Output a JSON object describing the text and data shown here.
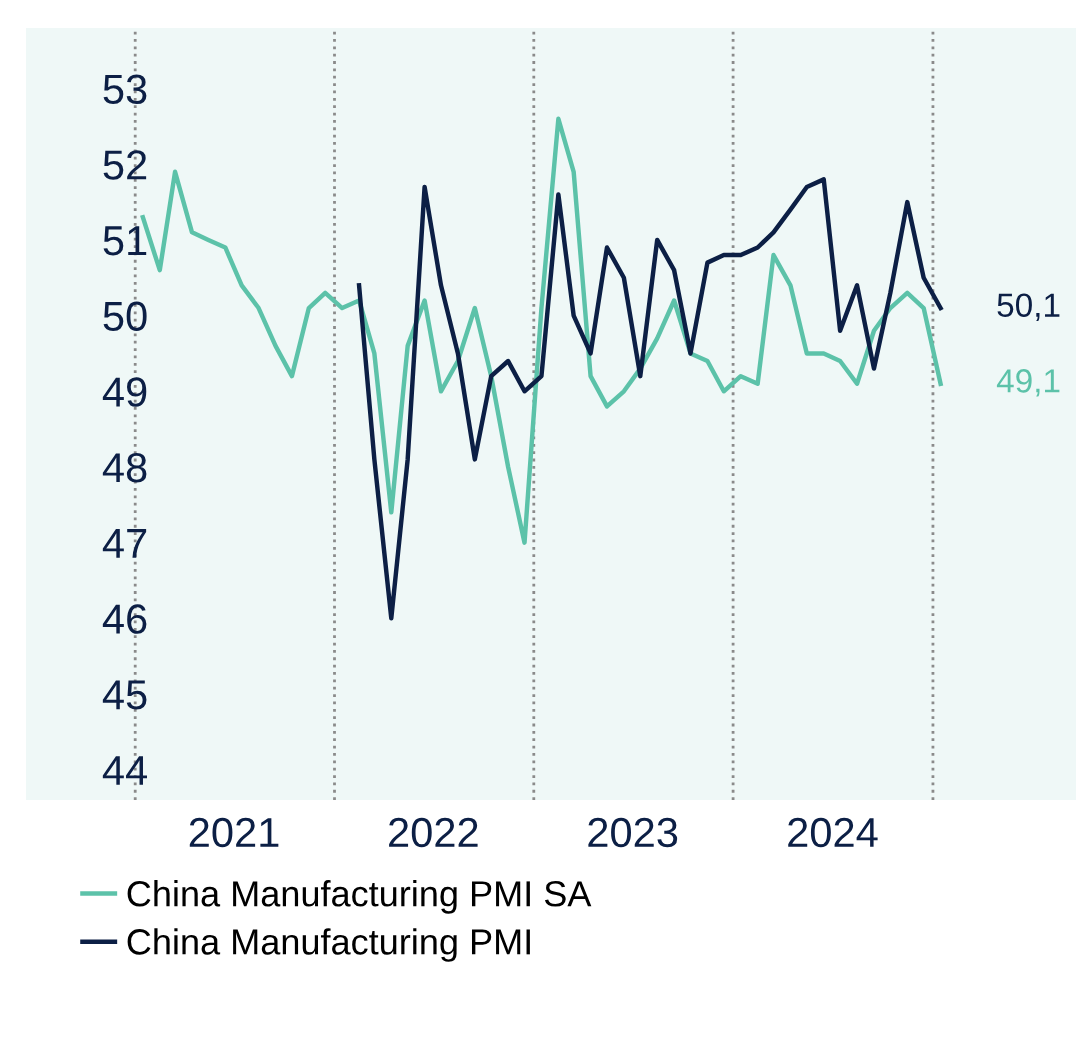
{
  "chart_data": {
    "type": "line",
    "x": [
      "2021-01-15",
      "2021-02-15",
      "2021-03-15",
      "2021-04-15",
      "2021-05-15",
      "2021-06-15",
      "2021-07-15",
      "2021-08-15",
      "2021-09-15",
      "2021-10-15",
      "2021-11-15",
      "2021-12-15",
      "2022-01-15",
      "2022-02-15",
      "2022-03-15",
      "2022-04-15",
      "2022-05-15",
      "2022-06-15",
      "2022-07-15",
      "2022-08-15",
      "2022-09-15",
      "2022-10-15",
      "2022-11-15",
      "2022-12-15",
      "2023-01-15",
      "2023-02-15",
      "2023-03-15",
      "2023-04-15",
      "2023-05-15",
      "2023-06-15",
      "2023-07-15",
      "2023-08-15",
      "2023-09-15",
      "2023-10-15",
      "2023-11-15",
      "2023-12-15",
      "2024-01-15",
      "2024-02-15",
      "2024-03-15",
      "2024-04-15",
      "2024-05-15",
      "2024-06-15",
      "2024-07-15",
      "2024-08-15",
      "2024-09-15",
      "2024-10-15",
      "2024-11-15",
      "2024-12-15",
      "2025-01-15"
    ],
    "series": [
      {
        "name": "China Manufacturing PMI SA",
        "color": "#5cc2a9",
        "values": [
          51.3,
          50.6,
          51.9,
          51.1,
          51.0,
          50.9,
          50.4,
          50.1,
          49.6,
          49.2,
          50.1,
          50.3,
          50.1,
          50.2,
          49.5,
          47.4,
          49.6,
          50.2,
          49.0,
          49.4,
          50.1,
          49.2,
          48.0,
          47.0,
          50.1,
          52.6,
          51.9,
          49.2,
          48.8,
          49.0,
          49.3,
          49.7,
          50.2,
          49.5,
          49.4,
          49.0,
          49.2,
          49.1,
          50.8,
          50.4,
          49.5,
          49.5,
          49.4,
          49.1,
          49.8,
          50.1,
          50.3,
          50.1,
          49.1
        ]
      },
      {
        "name": "China Manufacturing PMI",
        "color": "#0c1f45",
        "values": [
          null,
          null,
          null,
          null,
          null,
          null,
          null,
          null,
          null,
          null,
          null,
          null,
          null,
          50.4,
          48.1,
          46.0,
          48.1,
          51.7,
          50.4,
          49.5,
          48.1,
          49.2,
          49.4,
          49.0,
          49.2,
          51.6,
          50.0,
          49.5,
          50.9,
          50.5,
          49.2,
          51.0,
          50.6,
          49.5,
          50.7,
          50.8,
          50.8,
          50.9,
          51.1,
          51.4,
          51.7,
          51.8,
          49.8,
          50.4,
          49.3,
          50.3,
          51.5,
          50.5,
          50.1
        ]
      }
    ],
    "annotations": [
      {
        "text": "49,1",
        "x": "2025-01-15",
        "y": 49.1
      },
      {
        "text": "50,1",
        "x": "2025-01-15",
        "y": 50.1
      }
    ],
    "xlim": [
      "2020-06-15",
      "2025-09-20"
    ],
    "xticks": [
      {
        "value": "2021-07-01",
        "label": "2021"
      },
      {
        "value": "2022-07-01",
        "label": "2022"
      },
      {
        "value": "2023-07-01",
        "label": "2023"
      },
      {
        "value": "2024-07-01",
        "label": "2024"
      }
    ],
    "ylim": [
      43.6,
      53.8
    ],
    "yticks": [
      44,
      45,
      46,
      47,
      48,
      49,
      50,
      51,
      52,
      53
    ],
    "ref_lines": [
      {
        "axis": "x",
        "value": "2021-01-01",
        "color": "#8a8a8a",
        "line_style": "dotted"
      },
      {
        "axis": "x",
        "value": "2022-01-01",
        "color": "#8a8a8a",
        "line_style": "dotted"
      },
      {
        "axis": "x",
        "value": "2023-01-01",
        "color": "#8a8a8a",
        "line_style": "dotted"
      },
      {
        "axis": "x",
        "value": "2024-01-01",
        "color": "#8a8a8a",
        "line_style": "dotted"
      },
      {
        "axis": "x",
        "value": "2025-01-01",
        "color": "#8a8a8a",
        "line_style": "dotted"
      }
    ],
    "grid": false,
    "legend": "bottom left",
    "line_style": "solid",
    "marker": "none"
  }
}
